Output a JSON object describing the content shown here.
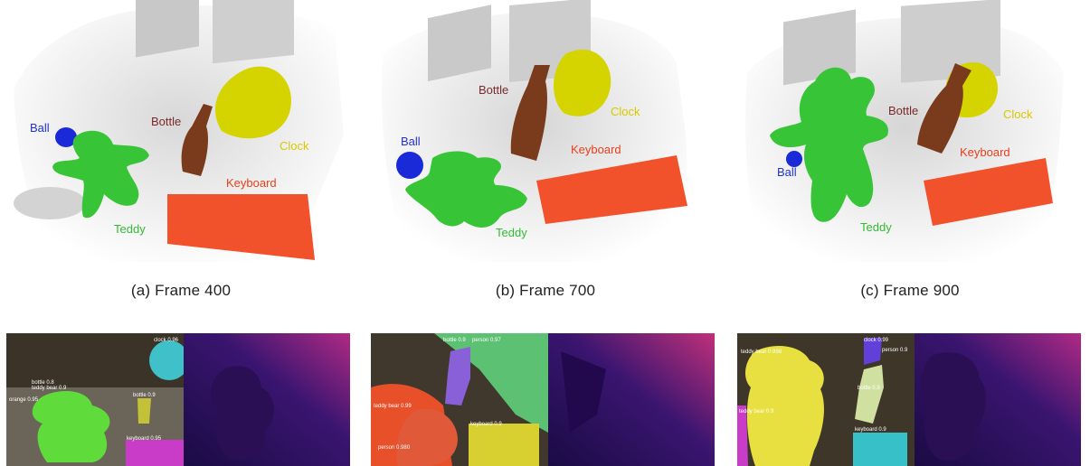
{
  "captions": {
    "a": "(a) Frame 400",
    "b": "(b) Frame 700",
    "c": "(c) Frame 900"
  },
  "labels": {
    "ball": "Ball",
    "bottle": "Bottle",
    "clock": "Clock",
    "keyboard": "Keyboard",
    "teddy": "Teddy"
  },
  "colors": {
    "ball": "#1a2ad8",
    "bottle": "#7a3b1c",
    "clock": "#d6d400",
    "keyboard": "#f2522b",
    "teddy": "#37c436",
    "label_ball": "#2233cc",
    "label_bottle": "#7a2a2a",
    "label_clock": "#d8c800",
    "label_keyboard": "#e8401e",
    "label_teddy": "#33bb33"
  },
  "detections": {
    "a": [
      "clock 0.96",
      "teddy bear 0.9",
      "orange 0.95",
      "bottle 0.8",
      "bottle 0.9",
      "keyboard 0.95"
    ],
    "b": [
      "bottle 0.9",
      "person 0.97",
      "teddy bear 0.99",
      "keyboard 0.9",
      "person 0.980"
    ],
    "c": [
      "teddy bear 0.998",
      "clock 0.99",
      "person 0.9",
      "bottle 0.9",
      "keyboard 0.9",
      "teddy bear 0.9"
    ]
  }
}
